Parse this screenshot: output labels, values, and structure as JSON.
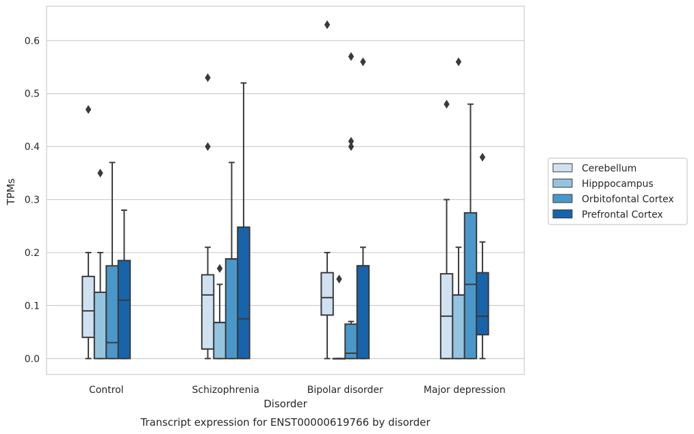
{
  "chart_data": {
    "type": "box",
    "title": "",
    "caption": "Transcript expression for ENST00000619766 by disorder",
    "xlabel": "Disorder",
    "ylabel": "TPMs",
    "ylim": [
      -0.03,
      0.665
    ],
    "yticks": [
      "0.0",
      "0.1",
      "0.2",
      "0.3",
      "0.4",
      "0.5",
      "0.6"
    ],
    "grid": "horizontal",
    "legend_position": "right",
    "categories": [
      "Control",
      "Schizophrenia",
      "Bipolar disorder",
      "Major depression"
    ],
    "series": [
      {
        "name": "Cerebellum",
        "color": "#d0e1f2",
        "boxes": [
          {
            "whislo": 0.0,
            "q1": 0.04,
            "med": 0.09,
            "q3": 0.155,
            "whishi": 0.2,
            "fliers": [
              0.47
            ]
          },
          {
            "whislo": 0.0,
            "q1": 0.018,
            "med": 0.12,
            "q3": 0.158,
            "whishi": 0.21,
            "fliers": [
              0.4,
              0.53
            ]
          },
          {
            "whislo": 0.0,
            "q1": 0.082,
            "med": 0.115,
            "q3": 0.162,
            "whishi": 0.2,
            "fliers": [
              0.63
            ]
          },
          {
            "whislo": 0.0,
            "q1": 0.0,
            "med": 0.08,
            "q3": 0.16,
            "whishi": 0.3,
            "fliers": [
              0.48
            ]
          }
        ]
      },
      {
        "name": "Hipppocampus",
        "color": "#94c4df",
        "boxes": [
          {
            "whislo": 0.0,
            "q1": 0.0,
            "med": 0.125,
            "q3": 0.125,
            "whishi": 0.2,
            "fliers": [
              0.35
            ]
          },
          {
            "whislo": 0.0,
            "q1": 0.0,
            "med": 0.068,
            "q3": 0.068,
            "whishi": 0.14,
            "fliers": [
              0.17
            ]
          },
          {
            "whislo": 0.0,
            "q1": 0.0,
            "med": 0.0,
            "q3": 0.0,
            "whishi": 0.0,
            "fliers": [
              0.15
            ]
          },
          {
            "whislo": 0.0,
            "q1": 0.0,
            "med": 0.12,
            "q3": 0.12,
            "whishi": 0.21,
            "fliers": [
              0.56
            ]
          }
        ]
      },
      {
        "name": "Orbitofontal Cortex",
        "color": "#4a98c9",
        "boxes": [
          {
            "whislo": 0.0,
            "q1": 0.0,
            "med": 0.03,
            "q3": 0.175,
            "whishi": 0.37,
            "fliers": []
          },
          {
            "whislo": 0.0,
            "q1": 0.0,
            "med": 0.188,
            "q3": 0.188,
            "whishi": 0.37,
            "fliers": []
          },
          {
            "whislo": 0.0,
            "q1": 0.0,
            "med": 0.01,
            "q3": 0.065,
            "whishi": 0.07,
            "fliers": [
              0.4,
              0.41,
              0.57
            ]
          },
          {
            "whislo": 0.0,
            "q1": 0.0,
            "med": 0.14,
            "q3": 0.275,
            "whishi": 0.48,
            "fliers": []
          }
        ]
      },
      {
        "name": "Prefrontal Cortex",
        "color": "#1764ab",
        "boxes": [
          {
            "whislo": 0.0,
            "q1": 0.0,
            "med": 0.11,
            "q3": 0.185,
            "whishi": 0.28,
            "fliers": []
          },
          {
            "whislo": 0.0,
            "q1": 0.0,
            "med": 0.075,
            "q3": 0.248,
            "whishi": 0.52,
            "fliers": []
          },
          {
            "whislo": 0.0,
            "q1": 0.0,
            "med": 0.175,
            "q3": 0.175,
            "whishi": 0.21,
            "fliers": [
              0.56
            ]
          },
          {
            "whislo": 0.0,
            "q1": 0.045,
            "med": 0.08,
            "q3": 0.162,
            "whishi": 0.22,
            "fliers": [
              0.38
            ]
          }
        ]
      }
    ]
  }
}
